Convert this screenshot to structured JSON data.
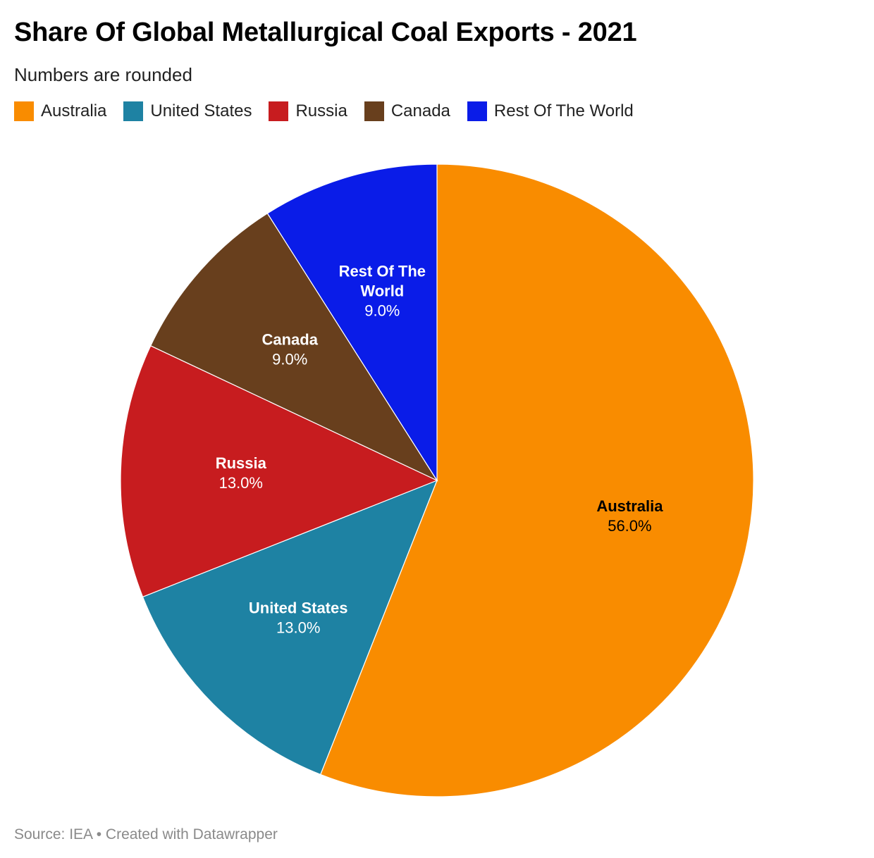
{
  "chart_data": {
    "type": "pie",
    "title": "Share Of Global Metallurgical Coal Exports - 2021",
    "subtitle": "Numbers are rounded",
    "legend_position": "top-left",
    "categories": [
      "Australia",
      "United States",
      "Russia",
      "Canada",
      "Rest Of The World"
    ],
    "values": [
      56.0,
      13.0,
      13.0,
      9.0,
      9.0
    ],
    "value_labels": [
      "56.0%",
      "13.0%",
      "13.0%",
      "9.0%",
      "9.0%"
    ],
    "label_lines": [
      [
        "Australia"
      ],
      [
        "United States"
      ],
      [
        "Russia"
      ],
      [
        "Canada"
      ],
      [
        "Rest Of The",
        "World"
      ]
    ],
    "colors": [
      "#f98c00",
      "#1e82a3",
      "#c71c1f",
      "#683f1d",
      "#0a1ce8"
    ],
    "label_colors": [
      "#000000",
      "#ffffff",
      "#ffffff",
      "#ffffff",
      "#ffffff"
    ]
  },
  "footer": {
    "source": "Source: IEA • Created with Datawrapper"
  }
}
